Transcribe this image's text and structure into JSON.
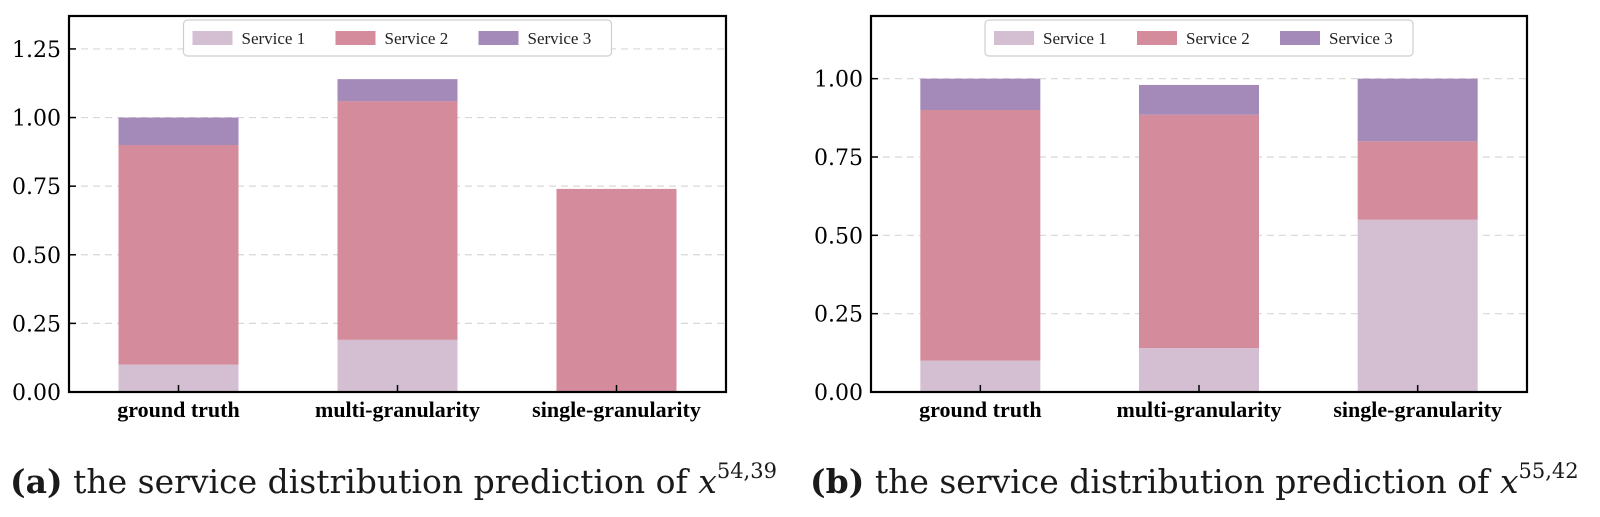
{
  "colors": {
    "service1": "#d4bfd2",
    "service2": "#d48b9c",
    "service3": "#a38ab9",
    "grid": "#d8d8d8",
    "axis": "#000000"
  },
  "captions": [
    {
      "tag": "(a)",
      "text": "the service distribution prediction of",
      "var": "x",
      "sup": "54,39"
    },
    {
      "tag": "(b)",
      "text": "the service distribution prediction of",
      "var": "x",
      "sup": "55,42"
    }
  ],
  "chart_data": [
    {
      "type": "bar",
      "stacked": true,
      "categories": [
        "ground truth",
        "multi-granularity",
        "single-granularity"
      ],
      "series": [
        {
          "name": "Service 1",
          "values": [
            0.1,
            0.19,
            0.0
          ]
        },
        {
          "name": "Service 2",
          "values": [
            0.8,
            0.87,
            0.74
          ]
        },
        {
          "name": "Service 3",
          "values": [
            0.1,
            0.08,
            0.0
          ]
        }
      ],
      "ylim": [
        0,
        1.37
      ],
      "yticks": [
        "0.00",
        "0.25",
        "0.50",
        "0.75",
        "1.00",
        "1.25"
      ],
      "grid": true,
      "legend": "top-center",
      "title": "",
      "xlabel": "",
      "ylabel": ""
    },
    {
      "type": "bar",
      "stacked": true,
      "categories": [
        "ground truth",
        "multi-granularity",
        "single-granularity"
      ],
      "series": [
        {
          "name": "Service 1",
          "values": [
            0.1,
            0.14,
            0.55
          ]
        },
        {
          "name": "Service 2",
          "values": [
            0.8,
            0.745,
            0.25
          ]
        },
        {
          "name": "Service 3",
          "values": [
            0.1,
            0.095,
            0.2
          ]
        }
      ],
      "ylim": [
        0,
        1.2
      ],
      "yticks": [
        "0.00",
        "0.25",
        "0.50",
        "0.75",
        "1.00"
      ],
      "grid": true,
      "legend": "top-center",
      "title": "",
      "xlabel": "",
      "ylabel": ""
    }
  ]
}
